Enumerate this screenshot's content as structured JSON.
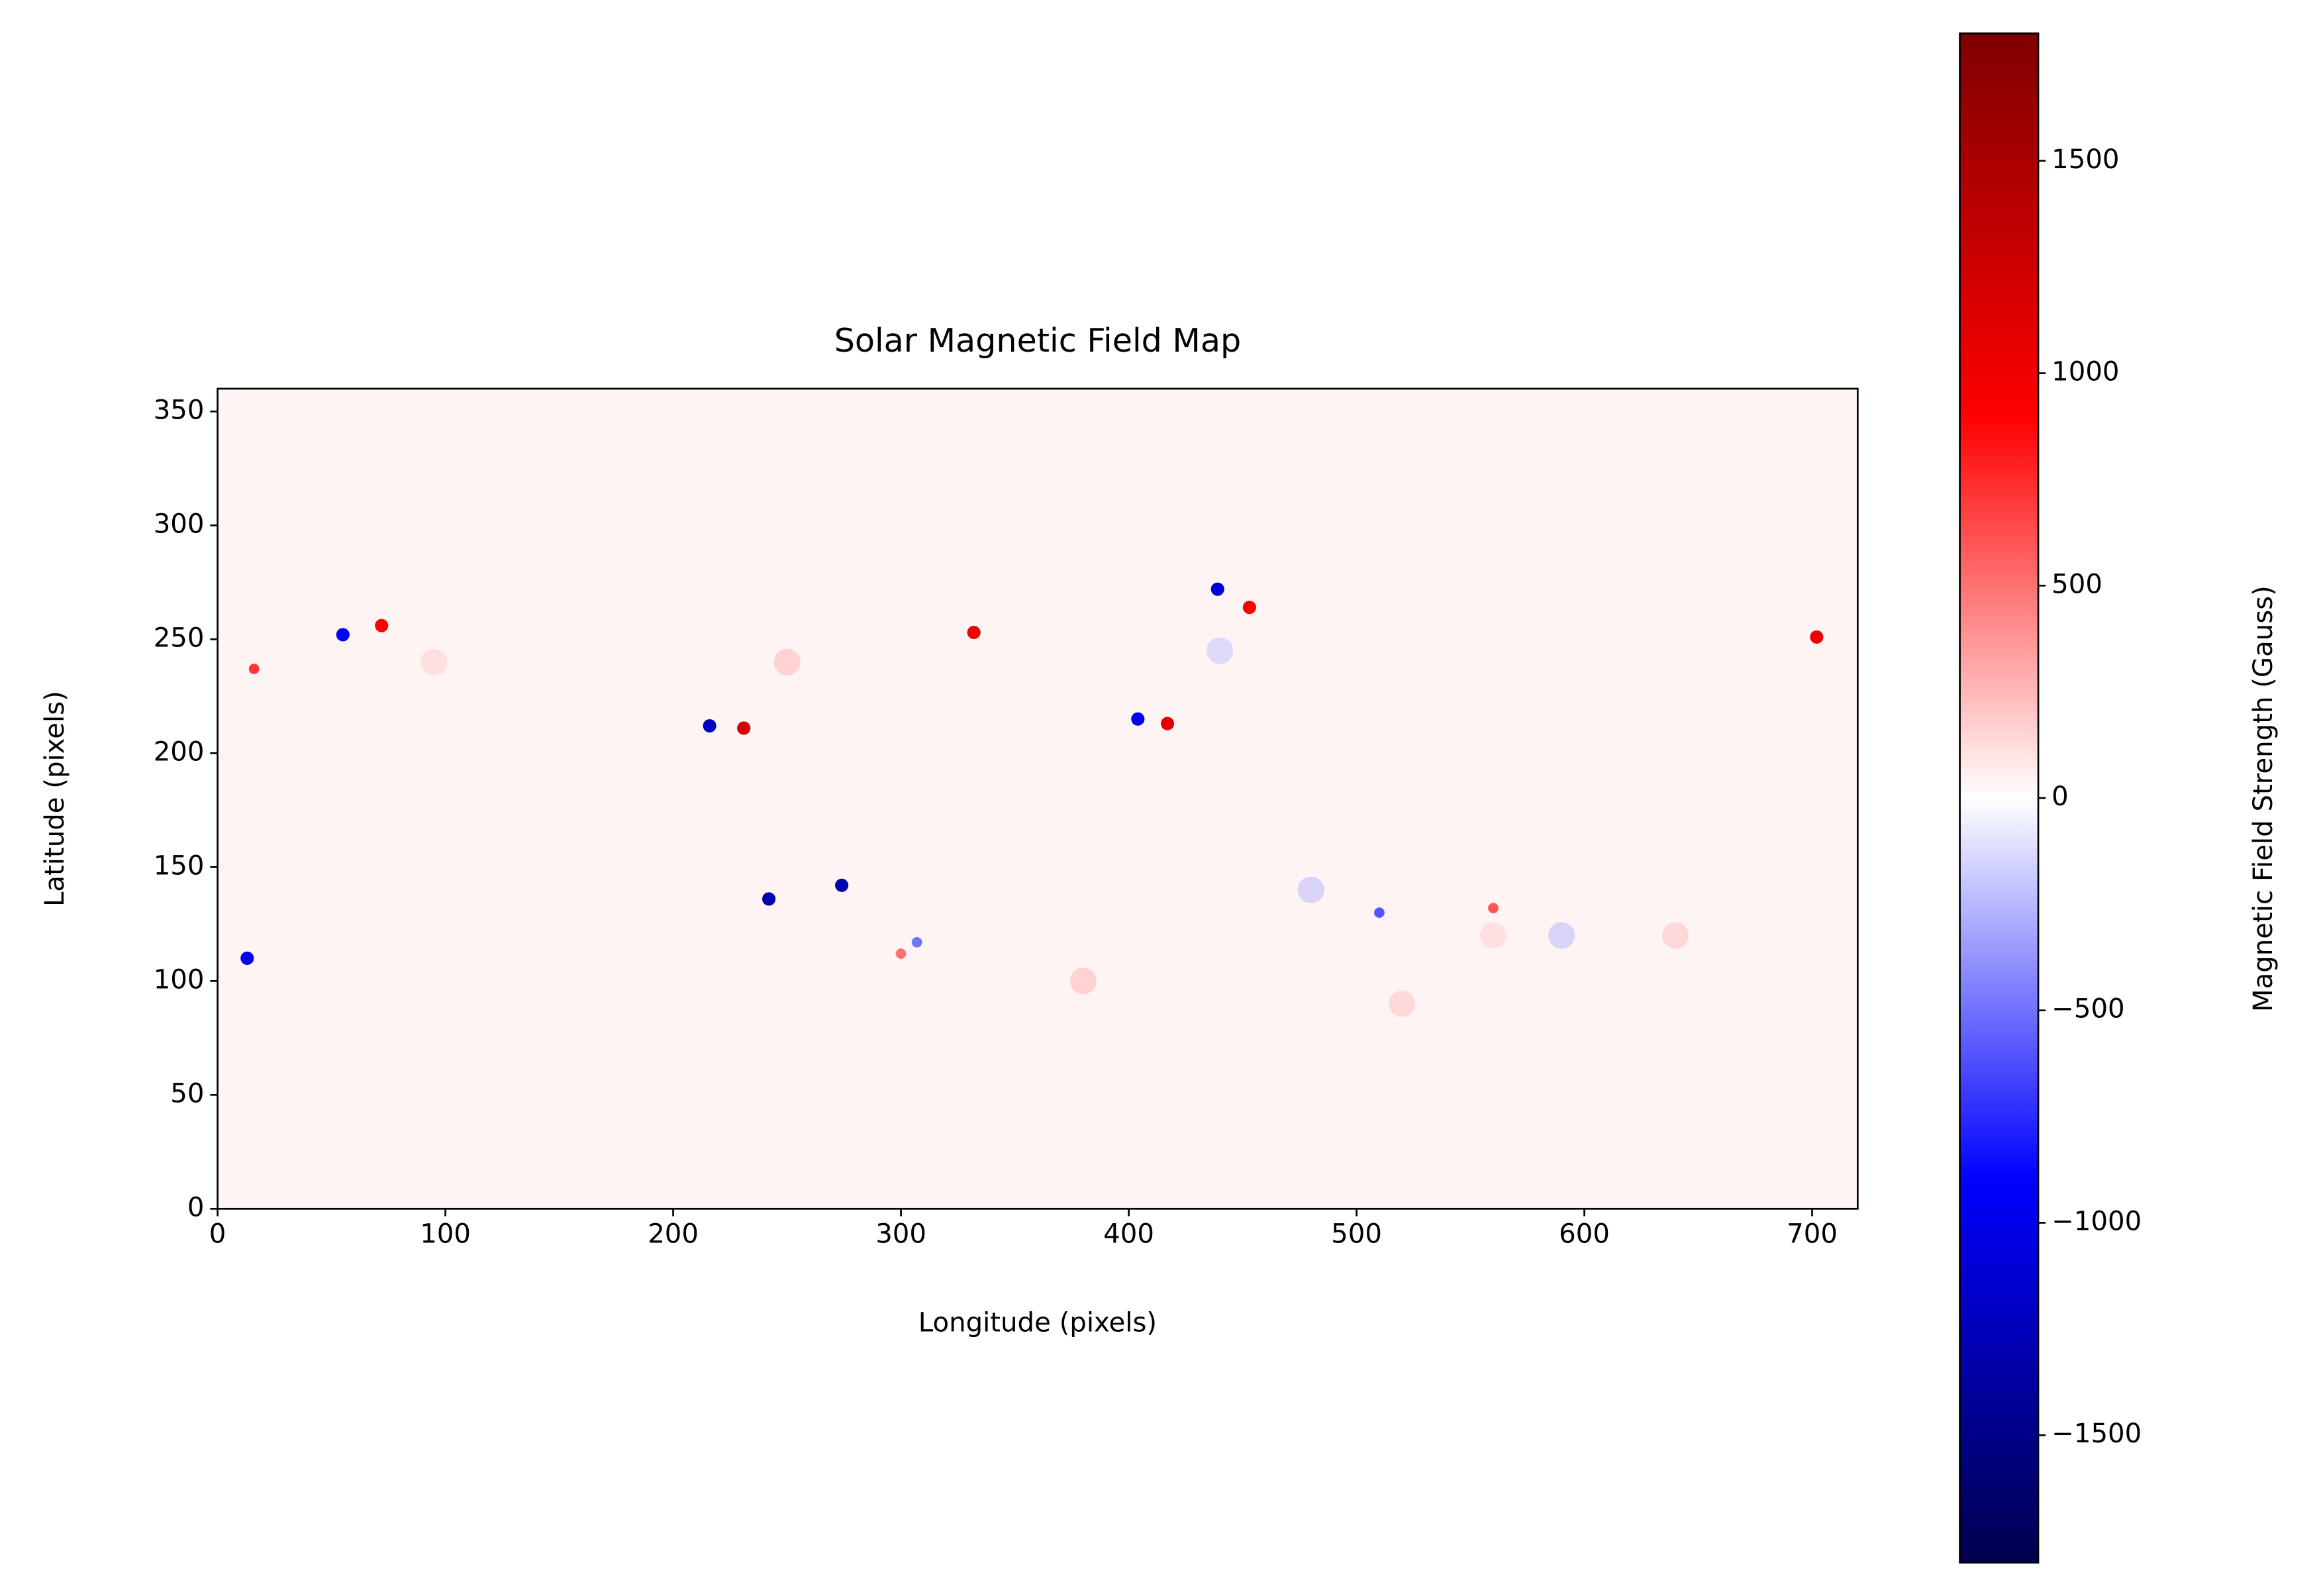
{
  "chart_data": {
    "type": "heatmap",
    "title": "Solar Magnetic Field Map",
    "xlabel": "Longitude (pixels)",
    "ylabel": "Latitude (pixels)",
    "xlim": [
      0,
      720
    ],
    "ylim": [
      0,
      360
    ],
    "xticks": [
      0,
      100,
      200,
      300,
      400,
      500,
      600,
      700
    ],
    "yticks": [
      0,
      50,
      100,
      150,
      200,
      250,
      300,
      350
    ],
    "x": [
      72,
      55,
      231,
      216,
      332,
      439,
      453,
      417,
      404,
      242,
      274,
      13,
      702,
      16,
      560,
      510,
      300,
      307,
      250,
      520,
      640,
      480,
      590,
      380,
      560,
      95,
      440
    ],
    "y": [
      256,
      252,
      211,
      212,
      253,
      272,
      264,
      213,
      215,
      136,
      142,
      110,
      251,
      237,
      132,
      130,
      112,
      117,
      240,
      90,
      120,
      140,
      120,
      100,
      120,
      240,
      245
    ],
    "values": [
      900,
      -900,
      1200,
      -1200,
      1000,
      -1100,
      900,
      1100,
      -1000,
      -1300,
      -1300,
      -1000,
      1000,
      700,
      600,
      -600,
      500,
      -500,
      300,
      250,
      250,
      -300,
      -300,
      300,
      200,
      200,
      -250
    ],
    "colorbar": {
      "label": "Magnetic Field Strength (Gauss)",
      "lim": [
        -1800,
        1800
      ],
      "ticks": [
        {
          "value": -1500,
          "label": "−1500"
        },
        {
          "value": -1000,
          "label": "−1000"
        },
        {
          "value": -500,
          "label": "−500"
        },
        0,
        500,
        1000,
        1500
      ],
      "colormap": [
        "#00004c",
        "#0000ff",
        "#ffffff",
        "#ff0000",
        "#7f0000"
      ]
    }
  }
}
